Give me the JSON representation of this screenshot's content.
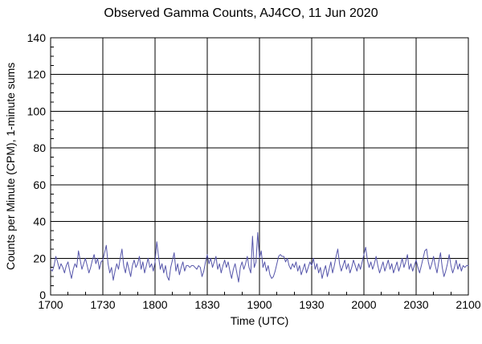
{
  "page": {
    "title": "Observed Gamma Counts, AJ4CO, 11 Jun 2020"
  },
  "chart_data": {
    "type": "line",
    "title": "Observed Gamma Counts, AJ4CO, 11 Jun 2020",
    "xlabel": "Time (UTC)",
    "ylabel": "Counts per Minute (CPM), 1-minute sums",
    "grid": true,
    "legend": "none",
    "line_color": "#5555aa",
    "grid_color": "#000000",
    "background_color": "#ffffff",
    "ylim": [
      0,
      140
    ],
    "y_major_step": 20,
    "y_minor_step": 5,
    "y_ticks": [
      0,
      20,
      40,
      60,
      80,
      100,
      120,
      140
    ],
    "x_range_min": 240,
    "x_minor_step_min": 10,
    "x_major_ticks": [
      {
        "label": "1700",
        "t": 0
      },
      {
        "label": "1730",
        "t": 30
      },
      {
        "label": "1800",
        "t": 60
      },
      {
        "label": "1830",
        "t": 90
      },
      {
        "label": "1900",
        "t": 120
      },
      {
        "label": "1930",
        "t": 150
      },
      {
        "label": "2000",
        "t": 180
      },
      {
        "label": "2030",
        "t": 210
      },
      {
        "label": "2100",
        "t": 240
      }
    ],
    "time_start_utc": "1700",
    "time_end_utc": "2100",
    "sample_step_minutes": 1,
    "values": [
      14,
      13,
      16,
      21,
      18,
      14,
      17,
      15,
      12,
      16,
      18,
      13,
      9,
      14,
      17,
      15,
      24,
      19,
      14,
      17,
      20,
      16,
      12,
      15,
      19,
      22,
      17,
      20,
      14,
      18,
      19,
      23,
      27,
      17,
      12,
      15,
      8,
      13,
      17,
      14,
      20,
      25,
      16,
      12,
      18,
      14,
      10,
      16,
      19,
      15,
      17,
      21,
      14,
      18,
      12,
      16,
      20,
      15,
      17,
      13,
      18,
      29,
      21,
      14,
      17,
      12,
      16,
      10,
      8,
      15,
      19,
      23,
      13,
      17,
      11,
      15,
      18,
      13,
      16,
      16,
      15,
      16,
      16,
      15,
      14,
      16,
      15,
      10,
      13,
      18,
      22,
      17,
      20,
      15,
      18,
      21,
      14,
      17,
      12,
      16,
      19,
      15,
      18,
      13,
      9,
      14,
      17,
      12,
      7,
      15,
      18,
      14,
      17,
      21,
      15,
      12,
      32,
      15,
      18,
      34,
      20,
      24,
      15,
      18,
      13,
      16,
      11,
      9,
      10,
      13,
      17,
      21,
      22,
      21,
      21,
      18,
      20,
      16,
      14,
      17,
      15,
      18,
      13,
      16,
      11,
      14,
      17,
      12,
      15,
      18,
      16,
      20,
      14,
      17,
      12,
      15,
      9,
      13,
      16,
      10,
      14,
      18,
      12,
      16,
      21,
      25,
      17,
      13,
      16,
      19,
      14,
      17,
      12,
      15,
      19,
      16,
      13,
      17,
      14,
      18,
      22,
      26,
      19,
      15,
      18,
      14,
      17,
      21,
      16,
      12,
      15,
      18,
      13,
      16,
      19,
      14,
      17,
      12,
      15,
      18,
      13,
      16,
      20,
      15,
      18,
      22,
      14,
      17,
      13,
      16,
      19,
      15,
      12,
      16,
      20,
      24,
      25,
      18,
      14,
      17,
      21,
      16,
      12,
      18,
      23,
      15,
      10,
      13,
      17,
      22,
      16,
      12,
      15,
      19,
      14,
      17,
      13,
      16,
      15,
      16,
      16
    ]
  }
}
